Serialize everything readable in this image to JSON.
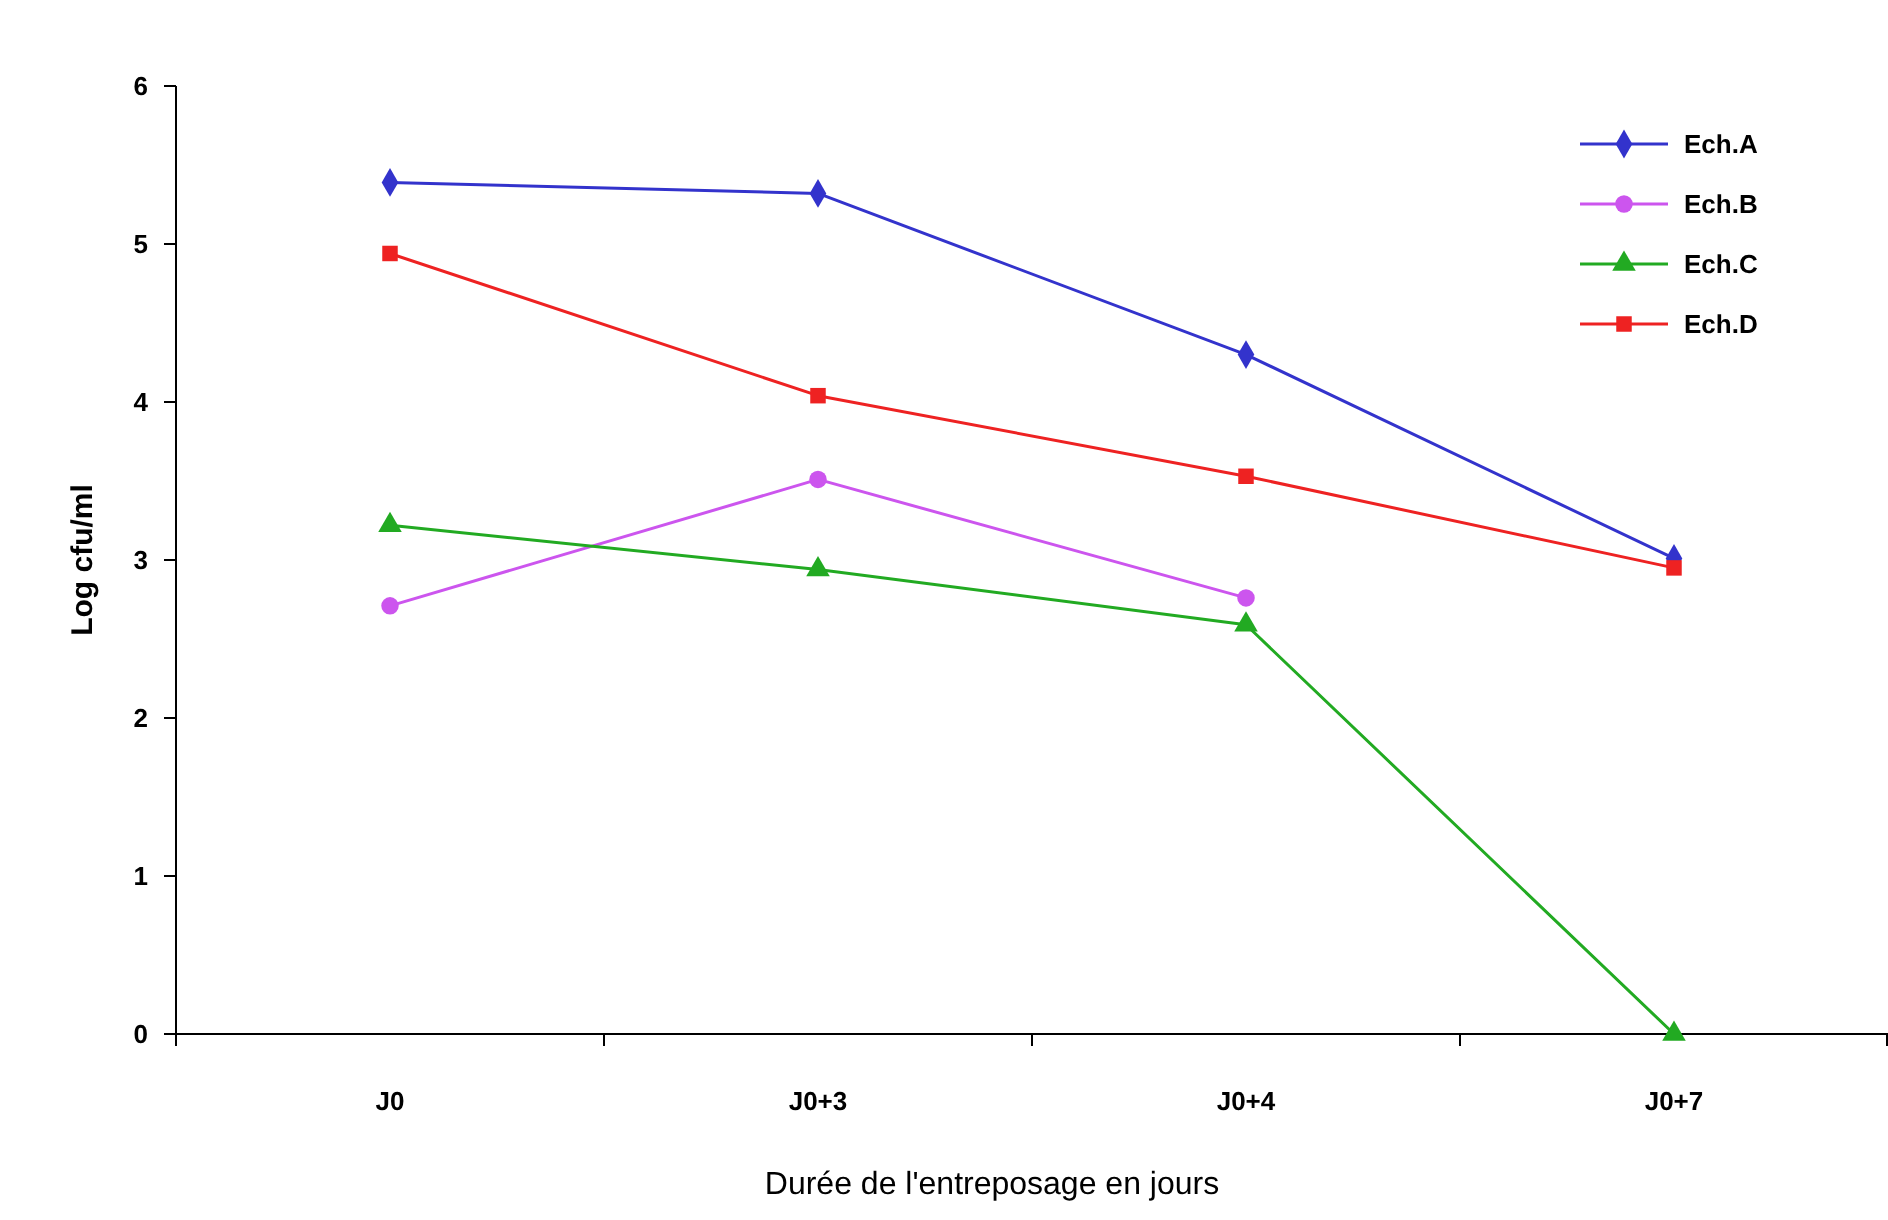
{
  "chart_data": {
    "type": "line",
    "xlabel": "Durée de l'entreposage en jours",
    "ylabel": "Log cfu/ml",
    "categories": [
      "J0",
      "J0+3",
      "J0+4",
      "J0+7"
    ],
    "ylim": [
      0,
      6
    ],
    "yticks": [
      0,
      1,
      2,
      3,
      4,
      5,
      6
    ],
    "grid": false,
    "legend": "top right",
    "line_style": "solid",
    "series": [
      {
        "name": "Ech.A",
        "color": "#3333cc",
        "marker": "diamond",
        "values": [
          5.39,
          5.32,
          4.3,
          3.01
        ]
      },
      {
        "name": "Ech.B",
        "color": "#cc55ee",
        "marker": "circle",
        "values": [
          2.71,
          3.51,
          2.76,
          null
        ]
      },
      {
        "name": "Ech.C",
        "color": "#22aa22",
        "marker": "triangle",
        "values": [
          3.22,
          2.94,
          2.59,
          0
        ]
      },
      {
        "name": "Ech.D",
        "color": "#ee2222",
        "marker": "square",
        "values": [
          4.94,
          4.04,
          3.53,
          2.95
        ]
      }
    ]
  }
}
